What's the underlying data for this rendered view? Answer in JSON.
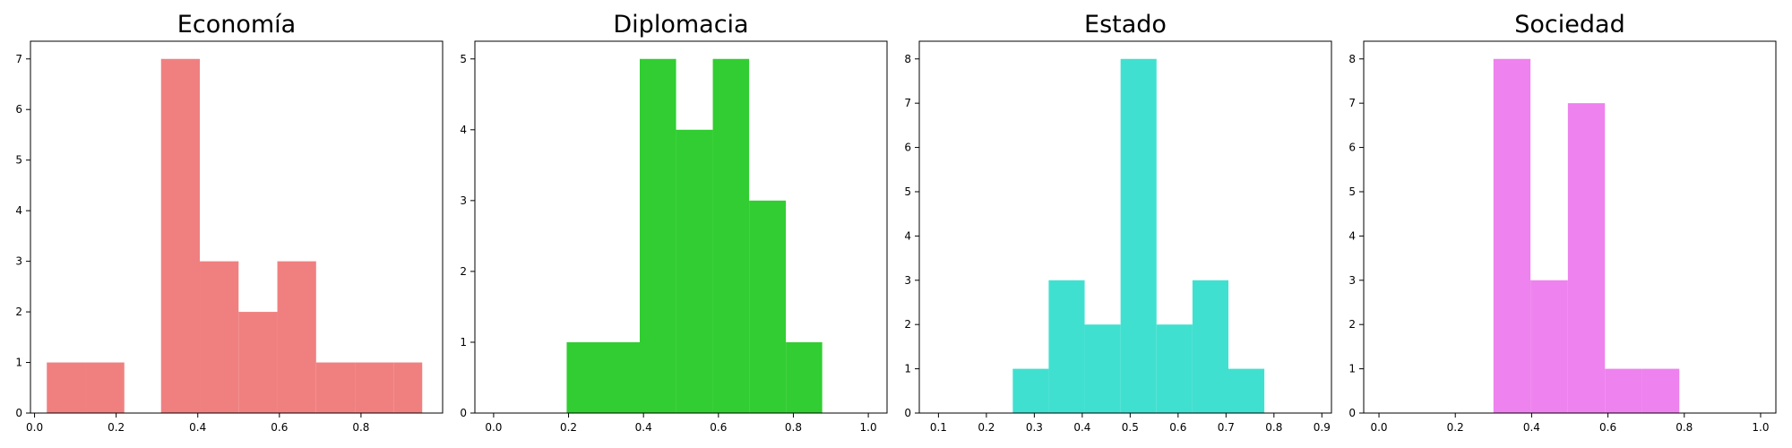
{
  "chart_data": [
    {
      "type": "bar",
      "title": "Economía",
      "color": "#f08080",
      "bins": [
        {
          "x0": 0.03,
          "x1": 0.125,
          "count": 1
        },
        {
          "x0": 0.125,
          "x1": 0.22,
          "count": 1
        },
        {
          "x0": 0.31,
          "x1": 0.405,
          "count": 7
        },
        {
          "x0": 0.405,
          "x1": 0.5,
          "count": 3
        },
        {
          "x0": 0.5,
          "x1": 0.595,
          "count": 2
        },
        {
          "x0": 0.595,
          "x1": 0.69,
          "count": 3
        },
        {
          "x0": 0.69,
          "x1": 0.785,
          "count": 1
        },
        {
          "x0": 0.785,
          "x1": 0.88,
          "count": 1
        },
        {
          "x0": 0.88,
          "x1": 0.95,
          "count": 1
        }
      ],
      "xlim": [
        -0.01,
        1.0
      ],
      "ylim": [
        0,
        7.35
      ],
      "xticks": [
        0.0,
        0.2,
        0.4,
        0.6,
        0.8
      ],
      "xtick_labels": [
        "0.0",
        "0.2",
        "0.4",
        "0.6",
        "0.8"
      ],
      "yticks": [
        0,
        1,
        2,
        3,
        4,
        5,
        6,
        7
      ],
      "ytick_labels": [
        "0",
        "1",
        "2",
        "3",
        "4",
        "5",
        "6",
        "7"
      ]
    },
    {
      "type": "bar",
      "title": "Diplomacia",
      "color": "#32cd32",
      "bins": [
        {
          "x0": 0.195,
          "x1": 0.39,
          "count": 1
        },
        {
          "x0": 0.39,
          "x1": 0.487,
          "count": 5
        },
        {
          "x0": 0.487,
          "x1": 0.585,
          "count": 4
        },
        {
          "x0": 0.585,
          "x1": 0.682,
          "count": 5
        },
        {
          "x0": 0.682,
          "x1": 0.78,
          "count": 3
        },
        {
          "x0": 0.78,
          "x1": 0.877,
          "count": 1
        }
      ],
      "xlim": [
        -0.05,
        1.05
      ],
      "ylim": [
        0,
        5.25
      ],
      "xticks": [
        0.0,
        0.2,
        0.4,
        0.6,
        0.8,
        1.0
      ],
      "xtick_labels": [
        "0.0",
        "0.2",
        "0.4",
        "0.6",
        "0.8",
        "1.0"
      ],
      "yticks": [
        0,
        1,
        2,
        3,
        4,
        5
      ],
      "ytick_labels": [
        "0",
        "1",
        "2",
        "3",
        "4",
        "5"
      ]
    },
    {
      "type": "bar",
      "title": "Estado",
      "color": "#40e0d0",
      "bins": [
        {
          "x0": 0.255,
          "x1": 0.33,
          "count": 1
        },
        {
          "x0": 0.33,
          "x1": 0.405,
          "count": 3
        },
        {
          "x0": 0.405,
          "x1": 0.48,
          "count": 2
        },
        {
          "x0": 0.48,
          "x1": 0.555,
          "count": 8
        },
        {
          "x0": 0.555,
          "x1": 0.63,
          "count": 2
        },
        {
          "x0": 0.63,
          "x1": 0.705,
          "count": 3
        },
        {
          "x0": 0.705,
          "x1": 0.78,
          "count": 1
        }
      ],
      "xlim": [
        0.06,
        0.92
      ],
      "ylim": [
        0,
        8.4
      ],
      "xticks": [
        0.1,
        0.2,
        0.3,
        0.4,
        0.5,
        0.6,
        0.7,
        0.8,
        0.9
      ],
      "xtick_labels": [
        "0.1",
        "0.2",
        "0.3",
        "0.4",
        "0.5",
        "0.6",
        "0.7",
        "0.8",
        "0.9"
      ],
      "yticks": [
        0,
        1,
        2,
        3,
        4,
        5,
        6,
        7,
        8
      ],
      "ytick_labels": [
        "0",
        "1",
        "2",
        "3",
        "4",
        "5",
        "6",
        "7",
        "8"
      ]
    },
    {
      "type": "bar",
      "title": "Sociedad",
      "color": "#ee82ee",
      "bins": [
        {
          "x0": 0.3,
          "x1": 0.397,
          "count": 8
        },
        {
          "x0": 0.397,
          "x1": 0.495,
          "count": 3
        },
        {
          "x0": 0.495,
          "x1": 0.592,
          "count": 7
        },
        {
          "x0": 0.592,
          "x1": 0.69,
          "count": 1
        },
        {
          "x0": 0.69,
          "x1": 0.787,
          "count": 1
        }
      ],
      "xlim": [
        -0.04,
        1.04
      ],
      "ylim": [
        0,
        8.4
      ],
      "xticks": [
        0.0,
        0.2,
        0.4,
        0.6,
        0.8,
        1.0
      ],
      "xtick_labels": [
        "0.0",
        "0.2",
        "0.4",
        "0.6",
        "0.8",
        "1.0"
      ],
      "yticks": [
        0,
        1,
        2,
        3,
        4,
        5,
        6,
        7,
        8
      ],
      "ytick_labels": [
        "0",
        "1",
        "2",
        "3",
        "4",
        "5",
        "6",
        "7",
        "8"
      ]
    }
  ]
}
